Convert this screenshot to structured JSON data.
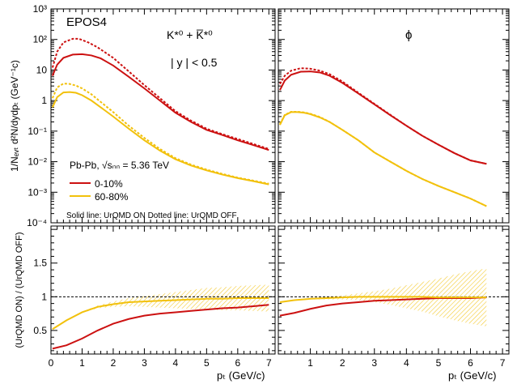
{
  "chart_data": [
    {
      "type": "line",
      "panel": "spectra-kstar",
      "scale": "log",
      "xlim": [
        0,
        7.2
      ],
      "ylim": [
        0.0001,
        1000
      ],
      "x_ticks": [
        "0",
        "1",
        "2",
        "3",
        "4",
        "5",
        "6",
        "7"
      ],
      "y_ticks": [
        "10⁻⁴",
        "10⁻³",
        "10⁻²",
        "10⁻¹",
        "1",
        "10",
        "10²",
        "10³"
      ],
      "ylabel": "1/Nₑᵥₜ d²N/dydpₜ (GeV⁻¹c)",
      "labels": {
        "model": "EPOS4",
        "particle": "K*⁰ + K̅*⁰",
        "rapidity": "| y | < 0.5",
        "system": "Pb-Pb, √sₙₙ = 5.36 TeV",
        "note": "Solid line: UrQMD ON  Dotted line: UrQMD OFF"
      },
      "series": [
        {
          "name": "0-10%",
          "color": "#cc1111",
          "style": "solid",
          "x": [
            0.05,
            0.2,
            0.4,
            0.7,
            1.0,
            1.3,
            1.6,
            2.0,
            2.5,
            3.0,
            3.5,
            4.0,
            4.5,
            5.0,
            5.5,
            6.0,
            6.5,
            7.0
          ],
          "y": [
            6.5,
            15,
            25,
            32,
            33,
            30,
            24,
            14,
            6,
            2.5,
            1.0,
            0.4,
            0.2,
            0.11,
            0.075,
            0.05,
            0.035,
            0.024
          ]
        },
        {
          "name": "0-10%",
          "color": "#cc1111",
          "style": "dashed",
          "x": [
            0.05,
            0.2,
            0.4,
            0.7,
            0.9,
            1.2,
            1.5,
            2.0,
            2.5,
            3.0,
            3.5,
            4.0,
            4.5,
            5.0,
            5.5,
            6.0,
            6.5,
            7.0
          ],
          "y": [
            12,
            40,
            80,
            105,
            105,
            80,
            55,
            25,
            9,
            3.2,
            1.2,
            0.45,
            0.22,
            0.12,
            0.08,
            0.055,
            0.038,
            0.026
          ]
        },
        {
          "name": "60-80%",
          "color": "#f2c10c",
          "style": "solid",
          "x": [
            0.05,
            0.2,
            0.4,
            0.6,
            0.8,
            1.0,
            1.3,
            1.6,
            2.0,
            2.5,
            3.0,
            3.5,
            4.0,
            4.5,
            5.0,
            5.5,
            6.0,
            6.5,
            7.0
          ],
          "y": [
            0.6,
            1.3,
            1.85,
            1.9,
            1.8,
            1.5,
            1.0,
            0.6,
            0.3,
            0.12,
            0.05,
            0.023,
            0.012,
            0.0075,
            0.0052,
            0.0038,
            0.0029,
            0.0023,
            0.0018
          ]
        },
        {
          "name": "60-80%",
          "color": "#f2c10c",
          "style": "dashed",
          "x": [
            0.05,
            0.2,
            0.4,
            0.6,
            0.8,
            1.0,
            1.3,
            1.6,
            2.0,
            2.5,
            3.0,
            3.5,
            4.0,
            4.5,
            5.0,
            5.5,
            6.0,
            6.5,
            7.0
          ],
          "y": [
            1.2,
            2.7,
            3.6,
            3.5,
            3.1,
            2.5,
            1.6,
            0.9,
            0.42,
            0.15,
            0.06,
            0.026,
            0.013,
            0.008,
            0.0055,
            0.004,
            0.003,
            0.0024,
            0.0019
          ]
        }
      ]
    },
    {
      "type": "line",
      "panel": "spectra-phi",
      "scale": "log",
      "xlim": [
        0,
        7.2
      ],
      "ylim": [
        0.0001,
        1000
      ],
      "x_ticks": [
        "1",
        "2",
        "3",
        "4",
        "5",
        "6",
        "7"
      ],
      "labels": {
        "particle": "ϕ"
      },
      "series": [
        {
          "name": "0-10%",
          "color": "#cc1111",
          "style": "solid",
          "x": [
            0.05,
            0.2,
            0.4,
            0.7,
            1.0,
            1.3,
            1.6,
            2.0,
            2.5,
            3.0,
            3.5,
            4.0,
            4.5,
            5.0,
            5.5,
            6.0,
            6.5
          ],
          "y": [
            2.2,
            4.5,
            7,
            8.8,
            9,
            8.3,
            6.5,
            3.8,
            1.7,
            0.75,
            0.33,
            0.15,
            0.07,
            0.036,
            0.019,
            0.011,
            0.0085
          ]
        },
        {
          "name": "0-10%",
          "color": "#cc1111",
          "style": "dashed",
          "x": [
            0.05,
            0.2,
            0.4,
            0.7,
            1.0,
            1.3,
            1.6,
            2.0,
            2.5,
            3.0,
            3.5,
            4.0,
            4.5,
            5.0,
            5.5,
            6.0,
            6.5
          ],
          "y": [
            3.5,
            6.5,
            9.5,
            11.5,
            11,
            9.5,
            7.3,
            4.2,
            1.8,
            0.78,
            0.34,
            0.15,
            0.07,
            0.036,
            0.019,
            0.011,
            0.0085
          ]
        },
        {
          "name": "60-80%",
          "color": "#f2c10c",
          "style": "solid",
          "x": [
            0.05,
            0.2,
            0.4,
            0.6,
            0.8,
            1.0,
            1.3,
            1.6,
            2.0,
            2.5,
            3.0,
            3.5,
            4.0,
            4.5,
            5.0,
            5.5,
            6.0,
            6.5
          ],
          "y": [
            0.16,
            0.33,
            0.42,
            0.42,
            0.4,
            0.36,
            0.28,
            0.2,
            0.11,
            0.05,
            0.02,
            0.01,
            0.005,
            0.0027,
            0.0016,
            0.001,
            0.00062,
            0.00035
          ]
        },
        {
          "name": "60-80%",
          "color": "#f2c10c",
          "style": "dashed",
          "x": [
            0.05,
            0.2,
            0.4,
            0.6,
            0.8,
            1.0,
            1.3,
            1.6,
            2.0,
            2.5,
            3.0,
            3.5,
            4.0,
            4.5,
            5.0,
            5.5,
            6.0,
            6.5
          ],
          "y": [
            0.17,
            0.34,
            0.43,
            0.43,
            0.41,
            0.37,
            0.29,
            0.2,
            0.11,
            0.05,
            0.02,
            0.01,
            0.005,
            0.0027,
            0.0016,
            0.001,
            0.00062,
            0.00035
          ]
        }
      ]
    },
    {
      "type": "line",
      "panel": "ratio-kstar",
      "scale": "linear",
      "xlim": [
        0,
        7.2
      ],
      "ylim": [
        0.15,
        2.05
      ],
      "x_ticks": [
        "0",
        "1",
        "2",
        "3",
        "4",
        "5",
        "6",
        "7"
      ],
      "y_ticks": [
        "0.5",
        "1",
        "1.5"
      ],
      "xlabel": "pₜ (GeV/c)",
      "ylabel": "(UrQMD ON) / (UrQMD OFF)",
      "reference_line": 1,
      "series": [
        {
          "name": "0-10%",
          "color": "#cc1111",
          "x": [
            0.05,
            0.5,
            1.0,
            1.5,
            2.0,
            2.5,
            3.0,
            3.5,
            4.0,
            4.5,
            5.0,
            5.5,
            6.0,
            6.5,
            7.0
          ],
          "y": [
            0.23,
            0.28,
            0.38,
            0.5,
            0.6,
            0.67,
            0.72,
            0.75,
            0.77,
            0.79,
            0.81,
            0.83,
            0.84,
            0.86,
            0.88
          ]
        },
        {
          "name": "60-80%",
          "color": "#f2c10c",
          "x": [
            0.05,
            0.5,
            1.0,
            1.5,
            2.0,
            2.5,
            3.0,
            3.5,
            4.0,
            4.5,
            5.0,
            5.5,
            6.0,
            6.5,
            7.0
          ],
          "y": [
            0.52,
            0.65,
            0.77,
            0.85,
            0.89,
            0.92,
            0.93,
            0.94,
            0.95,
            0.96,
            0.97,
            0.97,
            0.98,
            0.98,
            0.98
          ],
          "err": [
            0.01,
            0.01,
            0.01,
            0.02,
            0.04,
            0.06,
            0.08,
            0.1,
            0.12,
            0.14,
            0.16,
            0.17,
            0.18,
            0.19,
            0.2
          ]
        }
      ]
    },
    {
      "type": "line",
      "panel": "ratio-phi",
      "scale": "linear",
      "xlim": [
        0,
        7.2
      ],
      "ylim": [
        0.15,
        2.05
      ],
      "x_ticks": [
        "1",
        "2",
        "3",
        "4",
        "5",
        "6",
        "7"
      ],
      "xlabel": "pₜ (GeV/c)",
      "reference_line": 1,
      "series": [
        {
          "name": "0-10%",
          "color": "#cc1111",
          "x": [
            0.05,
            0.5,
            1.0,
            1.5,
            2.0,
            2.5,
            3.0,
            3.5,
            4.0,
            4.5,
            5.0,
            5.5,
            6.0,
            6.5
          ],
          "y": [
            0.72,
            0.76,
            0.82,
            0.87,
            0.9,
            0.92,
            0.94,
            0.95,
            0.96,
            0.97,
            0.98,
            0.98,
            0.98,
            0.99
          ]
        },
        {
          "name": "60-80%",
          "color": "#f2c10c",
          "x": [
            0.05,
            0.5,
            1.0,
            1.5,
            2.0,
            2.5,
            3.0,
            3.5,
            4.0,
            4.5,
            5.0,
            5.5,
            6.0,
            6.5
          ],
          "y": [
            0.92,
            0.95,
            0.97,
            0.98,
            0.99,
            1.0,
            1.0,
            1.0,
            1.0,
            1.0,
            0.99,
            0.99,
            0.99,
            0.99
          ],
          "err": [
            0.01,
            0.01,
            0.01,
            0.02,
            0.03,
            0.05,
            0.08,
            0.12,
            0.17,
            0.22,
            0.28,
            0.34,
            0.39,
            0.43
          ]
        }
      ]
    }
  ]
}
